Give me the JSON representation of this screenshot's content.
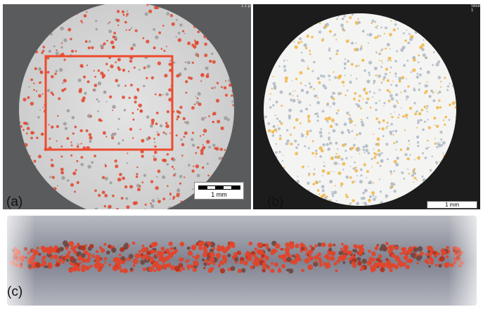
{
  "panels": {
    "a": {
      "label": "(a)",
      "scalebar": "1 mm",
      "header": "1.1 µm"
    },
    "b": {
      "label": "(b)",
      "scalebar": "1 mm",
      "header": "Slice 1"
    },
    "c": {
      "label": "(c)"
    }
  },
  "colors": {
    "particle_red": "#e2452b",
    "particle_orange": "#f0b23a",
    "roi_outline": "#ee4a2c",
    "slab_gray": "#8d909c"
  }
}
